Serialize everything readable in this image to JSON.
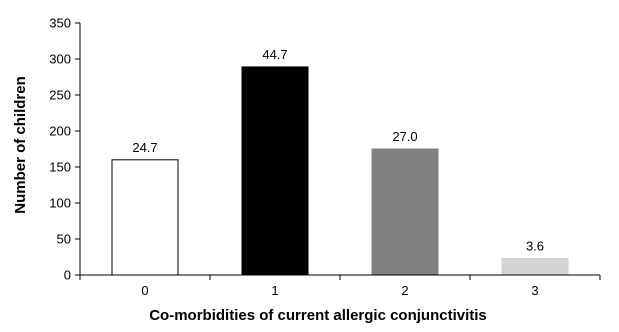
{
  "chart_data": {
    "type": "bar",
    "title": "",
    "xlabel": "Co-morbidities of current allergic conjunctivitis",
    "ylabel": "Number of children",
    "categories": [
      "0",
      "1",
      "2",
      "3"
    ],
    "values": [
      160,
      289,
      175,
      23
    ],
    "data_labels": [
      "24.7",
      "44.7",
      "27.0",
      "3.6"
    ],
    "bar_colors": [
      "#ffffff",
      "#000000",
      "#808080",
      "#d3d3d3"
    ],
    "bar_stroke": "#000000",
    "ylim": [
      0,
      350
    ],
    "yticks": [
      "0",
      "50",
      "100",
      "150",
      "200",
      "250",
      "300",
      "350"
    ],
    "grid": false,
    "legend": "none"
  }
}
